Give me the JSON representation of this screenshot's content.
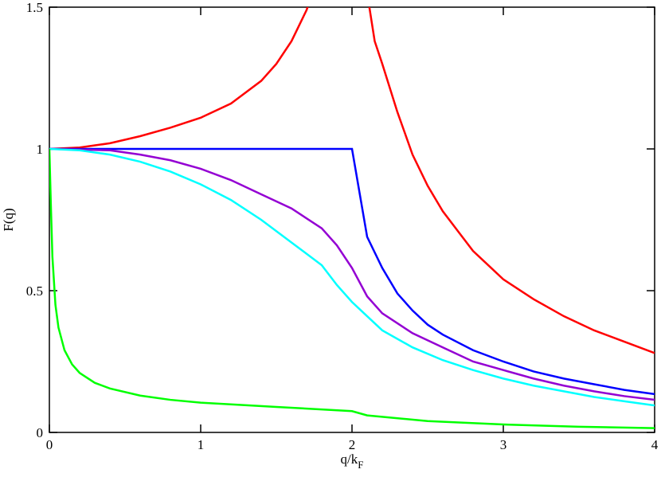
{
  "chart_data": {
    "type": "line",
    "xlabel": "q/k",
    "xlabel_subscript": "F",
    "ylabel": "F(q)",
    "xlim": [
      0,
      4
    ],
    "ylim": [
      0,
      1.5
    ],
    "xticks": [
      0,
      1,
      2,
      3,
      4
    ],
    "yticks": [
      0,
      0.5,
      1,
      1.5
    ],
    "series": [
      {
        "color": "#ff0000",
        "x": [
          0,
          0.2,
          0.4,
          0.6,
          0.8,
          1.0,
          1.2,
          1.4,
          1.5,
          1.6,
          1.7,
          1.75,
          null,
          2.1,
          2.15,
          2.2,
          2.3,
          2.4,
          2.5,
          2.6,
          2.7,
          2.8,
          2.9,
          3.0,
          3.2,
          3.4,
          3.6,
          3.8,
          4.0
        ],
        "values": [
          1,
          1.005,
          1.02,
          1.045,
          1.075,
          1.11,
          1.16,
          1.24,
          1.3,
          1.38,
          1.49,
          1.57,
          null,
          1.55,
          1.38,
          1.3,
          1.13,
          0.98,
          0.87,
          0.78,
          0.71,
          0.64,
          0.59,
          0.54,
          0.47,
          0.41,
          0.36,
          0.32,
          0.28
        ]
      },
      {
        "color": "#0000ff",
        "x": [
          0,
          2.0,
          2.1,
          2.2,
          2.3,
          2.4,
          2.5,
          2.6,
          2.8,
          3.0,
          3.2,
          3.4,
          3.6,
          3.8,
          4.0
        ],
        "values": [
          1,
          1,
          0.69,
          0.58,
          0.49,
          0.43,
          0.38,
          0.345,
          0.29,
          0.25,
          0.215,
          0.19,
          0.17,
          0.15,
          0.135
        ]
      },
      {
        "color": "#9400d3",
        "x": [
          0,
          0.4,
          0.6,
          0.8,
          1.0,
          1.2,
          1.4,
          1.6,
          1.8,
          1.9,
          2.0,
          2.1,
          2.2,
          2.4,
          2.6,
          2.8,
          3.0,
          3.2,
          3.4,
          3.6,
          3.8,
          4.0
        ],
        "values": [
          1,
          0.995,
          0.98,
          0.96,
          0.93,
          0.89,
          0.84,
          0.79,
          0.72,
          0.66,
          0.58,
          0.48,
          0.42,
          0.35,
          0.3,
          0.25,
          0.22,
          0.19,
          0.165,
          0.145,
          0.128,
          0.115
        ]
      },
      {
        "color": "#00ffff",
        "x": [
          0,
          0.2,
          0.4,
          0.6,
          0.8,
          1.0,
          1.2,
          1.4,
          1.6,
          1.8,
          1.9,
          2.0,
          2.1,
          2.2,
          2.4,
          2.6,
          2.8,
          3.0,
          3.2,
          3.4,
          3.6,
          3.8,
          4.0
        ],
        "values": [
          1,
          0.995,
          0.98,
          0.955,
          0.92,
          0.875,
          0.82,
          0.75,
          0.67,
          0.59,
          0.52,
          0.46,
          0.41,
          0.36,
          0.3,
          0.255,
          0.22,
          0.19,
          0.165,
          0.145,
          0.125,
          0.11,
          0.095
        ]
      },
      {
        "color": "#00ff00",
        "x": [
          0,
          0.01,
          0.02,
          0.04,
          0.06,
          0.1,
          0.15,
          0.2,
          0.3,
          0.4,
          0.6,
          0.8,
          1.0,
          1.5,
          2.0,
          2.1,
          2.5,
          3.0,
          3.5,
          4.0
        ],
        "values": [
          1,
          0.8,
          0.62,
          0.45,
          0.37,
          0.29,
          0.24,
          0.21,
          0.175,
          0.155,
          0.13,
          0.115,
          0.105,
          0.09,
          0.075,
          0.06,
          0.04,
          0.028,
          0.02,
          0.015
        ]
      }
    ]
  }
}
